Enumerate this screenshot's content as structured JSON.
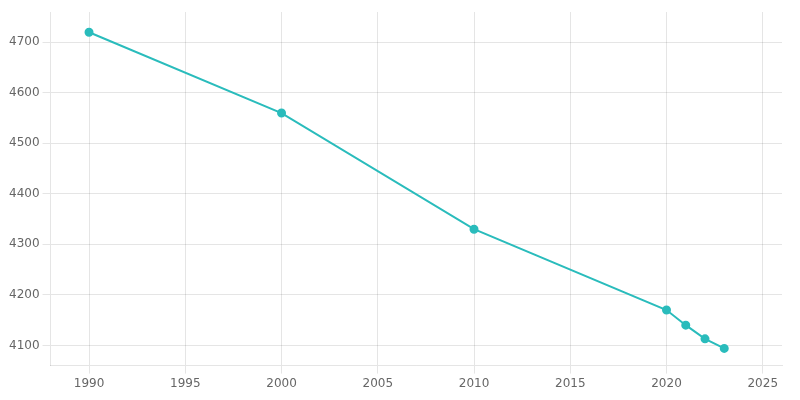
{
  "chart_data": {
    "type": "line",
    "x": [
      1990,
      2000,
      2010,
      2020,
      2021,
      2022,
      2023
    ],
    "values": [
      4720,
      4560,
      4330,
      4170,
      4140,
      4113,
      4094
    ],
    "color": "#2abcbc",
    "marker": "circle",
    "xlim": [
      1988,
      2026
    ],
    "ylim": [
      4060,
      4760
    ],
    "xticks": [
      1990,
      1995,
      2000,
      2005,
      2010,
      2015,
      2020,
      2025
    ],
    "yticks": [
      4100,
      4200,
      4300,
      4400,
      4500,
      4600,
      4700
    ],
    "grid": true
  }
}
